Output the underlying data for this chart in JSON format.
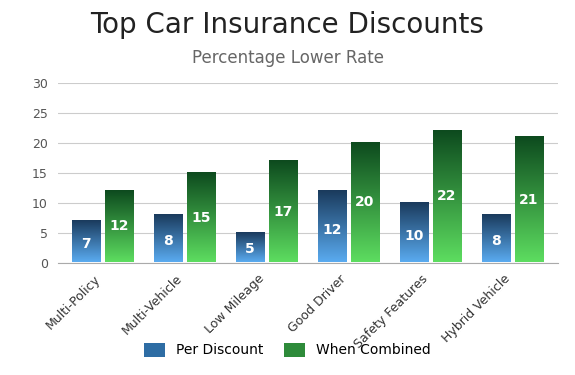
{
  "title": "Top Car Insurance Discounts",
  "subtitle": "Percentage Lower Rate",
  "categories": [
    "Multi-Policy",
    "Multi-Vehicle",
    "Low Mileage",
    "Good Driver",
    "Safety Features",
    "Hybrid Vehicle"
  ],
  "per_discount": [
    7,
    8,
    5,
    12,
    10,
    8
  ],
  "when_combined": [
    12,
    15,
    17,
    20,
    22,
    21
  ],
  "bar_color_blue_top": "#1a3a5c",
  "bar_color_blue_bottom": "#5aabf0",
  "bar_color_green_top": "#0d4a1e",
  "bar_color_green_bottom": "#5ddd60",
  "legend_blue": "#2e6da4",
  "legend_green": "#2e8b3a",
  "ylim": [
    0,
    30
  ],
  "yticks": [
    0,
    5,
    10,
    15,
    20,
    25,
    30
  ],
  "background_color": "#ffffff",
  "grid_color": "#cccccc",
  "title_fontsize": 20,
  "subtitle_fontsize": 12,
  "label_fontsize": 9,
  "bar_label_fontsize": 10
}
